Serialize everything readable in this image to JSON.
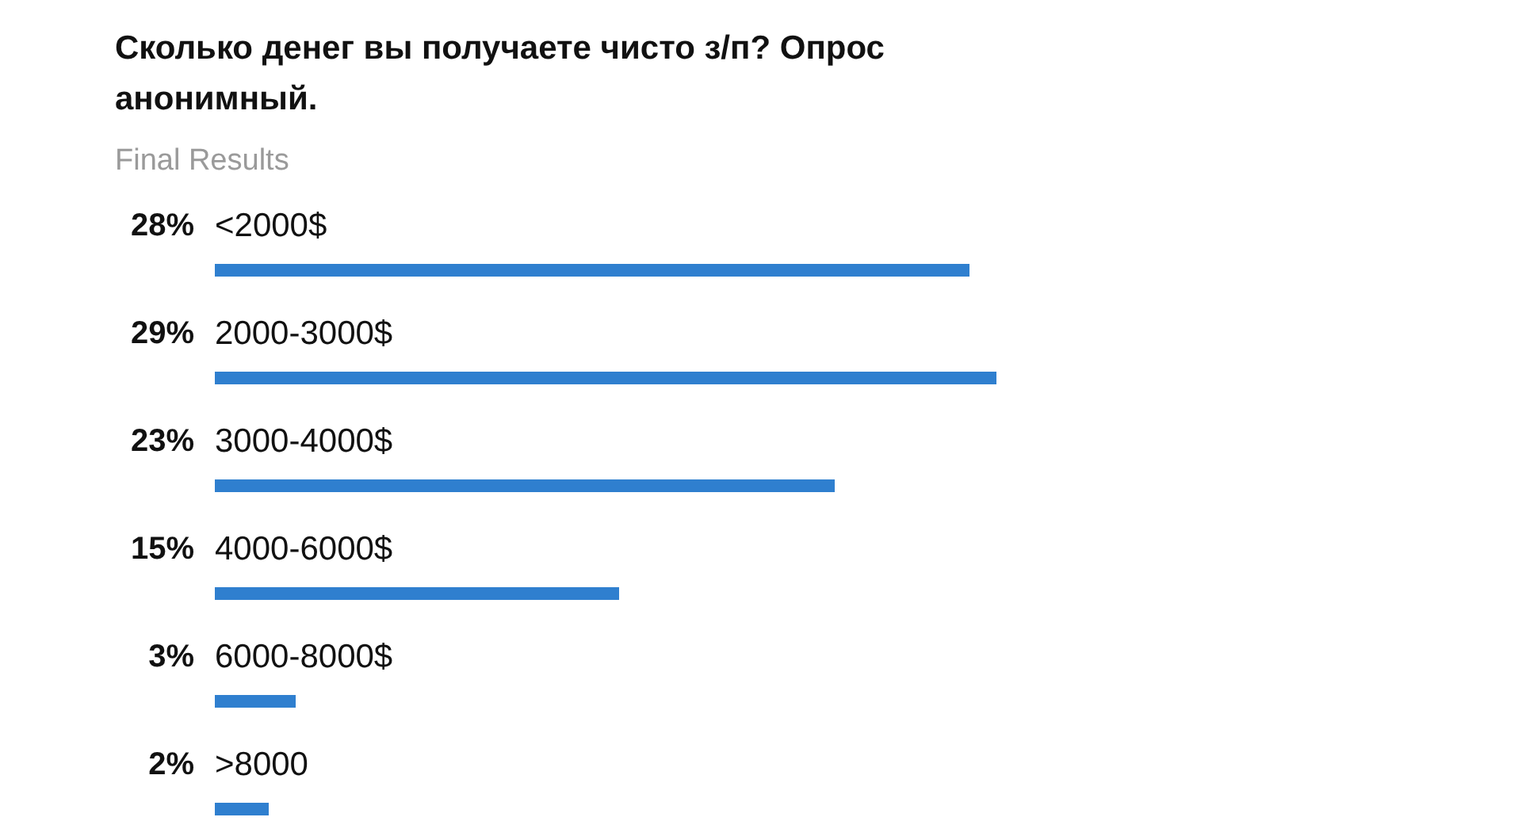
{
  "chart_data": {
    "type": "bar",
    "orientation": "horizontal",
    "title": "Сколько денег вы получаете чисто з/п? Опрос анонимный.",
    "subtitle": "Final Results",
    "categories": [
      "<2000$",
      "2000-3000$",
      "3000-4000$",
      "4000-6000$",
      "6000-8000$",
      ">8000"
    ],
    "values": [
      28,
      29,
      23,
      15,
      3,
      2
    ],
    "value_labels": [
      "28%",
      "29%",
      "23%",
      "15%",
      "3%",
      "2%"
    ],
    "color": "#2f7fcf"
  }
}
